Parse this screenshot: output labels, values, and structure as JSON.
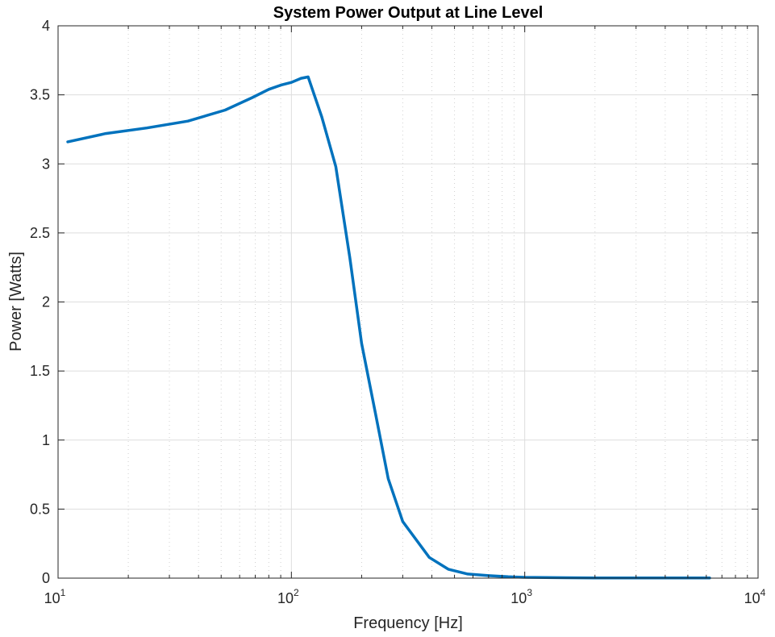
{
  "chart_data": {
    "type": "line",
    "title": "System Power Output at Line Level",
    "xlabel": "Frequency [Hz]",
    "ylabel": "Power [Watts]",
    "xscale": "log",
    "xlim": [
      10,
      10000
    ],
    "ylim": [
      0,
      4
    ],
    "grid": true,
    "minor_grid_x": true,
    "x_ticks": [
      {
        "base": "10",
        "exp": "1"
      },
      {
        "base": "10",
        "exp": "2"
      },
      {
        "base": "10",
        "exp": "3"
      },
      {
        "base": "10",
        "exp": "4"
      }
    ],
    "y_ticks": [
      "0",
      "0.5",
      "1",
      "1.5",
      "2",
      "2.5",
      "3",
      "3.5",
      "4"
    ],
    "series": [
      {
        "color": "#0072BD",
        "x": [
          11,
          16,
          24,
          36,
          52,
          68,
          80,
          90,
          100,
          110,
          118,
          135,
          155,
          178,
          200,
          230,
          260,
          300,
          390,
          470,
          570,
          700,
          850,
          1000,
          1500,
          2000,
          3000,
          4500,
          6200
        ],
        "y": [
          3.16,
          3.22,
          3.26,
          3.31,
          3.39,
          3.48,
          3.54,
          3.57,
          3.59,
          3.62,
          3.63,
          3.34,
          2.98,
          2.32,
          1.7,
          1.18,
          0.72,
          0.41,
          0.15,
          0.065,
          0.03,
          0.018,
          0.01,
          0.006,
          0.003,
          0.002,
          0.002,
          0.002,
          0.002
        ]
      }
    ]
  }
}
